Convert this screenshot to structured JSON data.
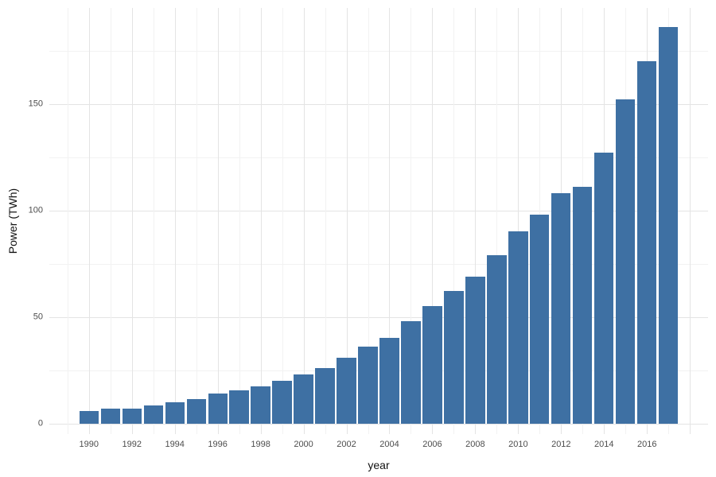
{
  "chart_data": {
    "type": "bar",
    "title": "",
    "xlabel": "year",
    "ylabel": "Power (TWh)",
    "categories": [
      1990,
      1991,
      1992,
      1993,
      1994,
      1995,
      1996,
      1997,
      1998,
      1999,
      2000,
      2001,
      2002,
      2003,
      2004,
      2005,
      2006,
      2007,
      2008,
      2009,
      2010,
      2011,
      2012,
      2013,
      2014,
      2015,
      2016,
      2017
    ],
    "values": [
      6,
      7,
      7,
      8.5,
      10,
      11.5,
      14,
      15.5,
      17.5,
      20,
      23,
      26,
      31,
      36,
      40,
      48,
      55,
      62,
      69,
      79,
      90,
      98,
      108,
      111,
      127,
      152,
      170,
      186
    ],
    "ylim": [
      0,
      195
    ],
    "yticks": [
      0,
      50,
      100,
      150
    ],
    "y_minor_ticks": [
      25,
      75,
      125,
      175
    ],
    "x_tick_years": [
      1990,
      1992,
      1994,
      1996,
      1998,
      2000,
      2002,
      2004,
      2006,
      2008,
      2010,
      2012,
      2014,
      2016
    ],
    "grid": true,
    "legend_position": "none",
    "styles": {
      "bar_color": "#3E70A3",
      "major_grid_color": "#E4E4E4",
      "minor_grid_color": "#F2F2F2",
      "tick_label_color": "#4D4D4D",
      "axis_title_color": "#111111",
      "background": "#FFFFFF"
    }
  }
}
